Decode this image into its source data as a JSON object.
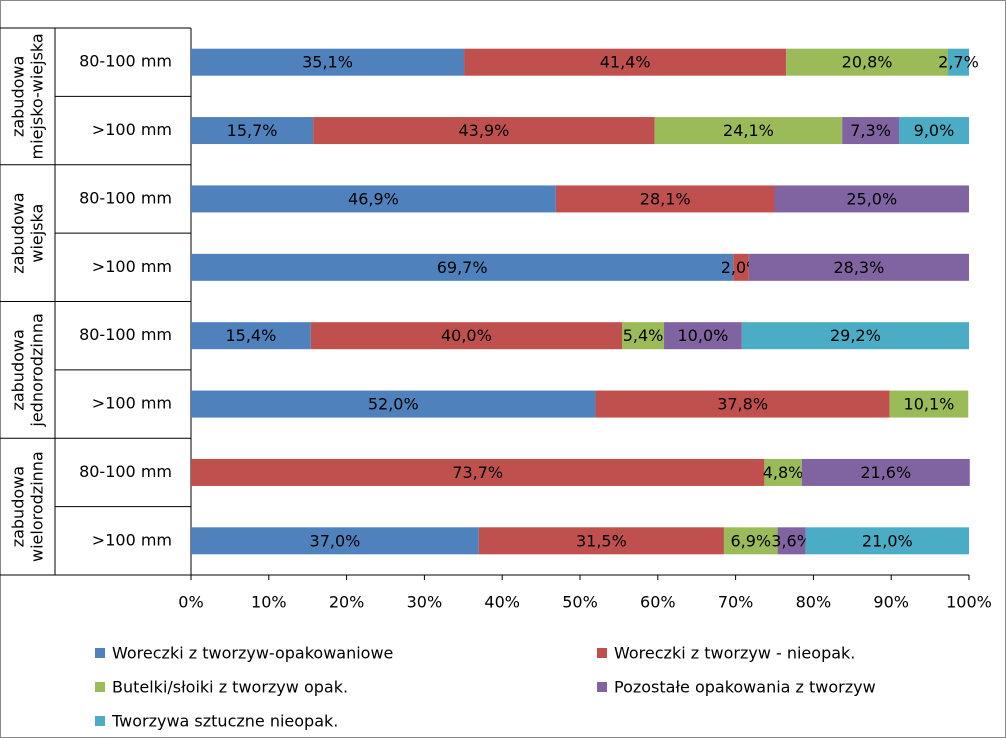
{
  "chart_data": {
    "type": "stacked-bar-horizontal-100",
    "groups": [
      [
        "zabudowa",
        "miejsko-wiejska"
      ],
      [
        "zabudowa",
        "wiejska"
      ],
      [
        "zabudowa",
        "jednorodzinna"
      ],
      [
        "zabudowa",
        "wielorodzinna"
      ]
    ],
    "categories": [
      "80-100 mm",
      ">100 mm",
      "80-100 mm",
      ">100 mm",
      "80-100 mm",
      ">100 mm",
      "80-100 mm",
      ">100 mm"
    ],
    "series": [
      {
        "name": "Woreczki z tworzyw-opakowaniowe",
        "color": "#4f81bd",
        "values": [
          35.1,
          15.7,
          46.9,
          69.7,
          15.4,
          52.0,
          null,
          37.0
        ],
        "value_labels": [
          "35,1%",
          "15,7%",
          "46,9%",
          "69,7%",
          "15,4%",
          "52,0%",
          null,
          "37,0%"
        ]
      },
      {
        "name": "Woreczki z tworzyw - nieopak.",
        "color": "#c0504d",
        "values": [
          41.4,
          43.9,
          28.1,
          2.0,
          40.0,
          37.8,
          73.7,
          31.5
        ],
        "value_labels": [
          "41,4%",
          "43,9%",
          "28,1%",
          "2,0%",
          "40,0%",
          "37,8%",
          "73,7%",
          "31,5%"
        ]
      },
      {
        "name": "Butelki/słoiki z tworzyw opak.",
        "color": "#9bbb59",
        "values": [
          20.8,
          24.1,
          null,
          null,
          5.4,
          10.1,
          4.8,
          6.9
        ],
        "value_labels": [
          "20,8%",
          "24,1%",
          null,
          null,
          "5,4%",
          "10,1%",
          "4,8%",
          "6,9%"
        ]
      },
      {
        "name": "Pozostałe opakowania z tworzyw",
        "color": "#8064a2",
        "values": [
          null,
          7.3,
          25.0,
          28.3,
          10.0,
          null,
          21.6,
          3.6
        ],
        "value_labels": [
          null,
          "7,3%",
          "25,0%",
          "28,3%",
          "10,0%",
          null,
          "21,6%",
          "3,6%"
        ]
      },
      {
        "name": "Tworzywa sztuczne nieopak.",
        "color": "#4bacc6",
        "values": [
          2.7,
          9.0,
          null,
          null,
          29.2,
          null,
          null,
          21.0
        ],
        "value_labels": [
          "2,7%",
          "9,0%",
          null,
          null,
          "29,2%",
          null,
          null,
          "21,0%"
        ]
      }
    ],
    "xlim": [
      0,
      100
    ],
    "xticks": [
      {
        "value": 0,
        "label": "0%"
      },
      {
        "value": 10,
        "label": "10%"
      },
      {
        "value": 20,
        "label": "20%"
      },
      {
        "value": 30,
        "label": "30%"
      },
      {
        "value": 40,
        "label": "40%"
      },
      {
        "value": 50,
        "label": "50%"
      },
      {
        "value": 60,
        "label": "60%"
      },
      {
        "value": 70,
        "label": "70%"
      },
      {
        "value": 80,
        "label": "80%"
      },
      {
        "value": 90,
        "label": "90%"
      },
      {
        "value": 100,
        "label": "100%"
      }
    ]
  }
}
